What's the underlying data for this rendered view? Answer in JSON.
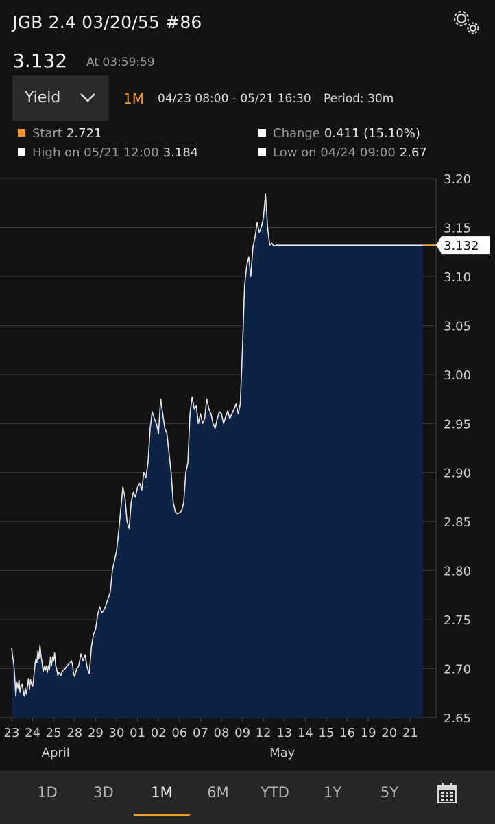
{
  "header": {
    "title": "JGB 2.4 03/20/55 #86",
    "price": "3.132",
    "at_time": "At 03:59:59"
  },
  "controls": {
    "selector_label": "Yield",
    "range": "1M",
    "dates": "04/23 08:00 - 05/21 16:30",
    "period": "Period: 30m"
  },
  "stats": {
    "start_label": "Start",
    "start_value": "2.721",
    "change_label": "Change",
    "change_value": "0.411 (15.10%)",
    "high_label": "High on 05/21 12:00",
    "high_value": "3.184",
    "low_label": "Low on 04/24 09:00",
    "low_value": "2.67"
  },
  "colors": {
    "accent": "#f0962b",
    "line": "#e6e6e6",
    "area": "#0e2244",
    "background": "#121212"
  },
  "chart_data": {
    "type": "area",
    "ylim": [
      2.65,
      3.2
    ],
    "yticks": [
      "3.20",
      "3.15",
      "3.10",
      "3.05",
      "3.00",
      "2.95",
      "2.90",
      "2.85",
      "2.80",
      "2.75",
      "2.70",
      "2.65"
    ],
    "xtick_labels": [
      "23",
      "24",
      "25",
      "28",
      "29",
      "30",
      "01",
      "02",
      "06",
      "07",
      "08",
      "09",
      "12",
      "13",
      "14",
      "15",
      "16",
      "19",
      "20",
      "21"
    ],
    "month_labels": [
      "April",
      "May"
    ],
    "last_value_label": "3.132",
    "grid": true,
    "series": [
      {
        "x": [
          0,
          0.05,
          0.1,
          0.15,
          0.2,
          0.25,
          0.3,
          0.35,
          0.4,
          0.45,
          0.5,
          0.55,
          0.6,
          0.65,
          0.7,
          0.75,
          0.8,
          0.85,
          0.9,
          0.95,
          1,
          1.05,
          1.1,
          1.15,
          1.2,
          1.25,
          1.3,
          1.35,
          1.4,
          1.45,
          1.5,
          1.55,
          1.6,
          1.65,
          1.7,
          1.75,
          1.8,
          1.85,
          1.9,
          1.95,
          2,
          2.05,
          2.1,
          2.15,
          2.2,
          2.25,
          2.3,
          2.35,
          2.4,
          2.45,
          2.5,
          2.55,
          2.6,
          2.65,
          2.7,
          2.75,
          2.8,
          2.85,
          2.9,
          2.95,
          3,
          3.1,
          3.2,
          3.3,
          3.4,
          3.5,
          3.6,
          3.7,
          3.8,
          3.9,
          4,
          4.1,
          4.2,
          4.3,
          4.4,
          4.5,
          4.6,
          4.7,
          4.8,
          4.9,
          5,
          5.1,
          5.2,
          5.3,
          5.4,
          5.5,
          5.6,
          5.7,
          5.8,
          5.9,
          6,
          6.1,
          6.2,
          6.3,
          6.4,
          6.5,
          6.6,
          6.7,
          6.8,
          6.9,
          7,
          7.1,
          7.2,
          7.3,
          7.4,
          7.5,
          7.6,
          7.7,
          7.8,
          7.9,
          8,
          8.1,
          8.2,
          8.3,
          8.4,
          8.5,
          8.6,
          8.7,
          8.8,
          8.9,
          9,
          9.1,
          9.2,
          9.3,
          9.4,
          9.5,
          9.6,
          9.7,
          9.8,
          9.9,
          10,
          10.1,
          10.2,
          10.3,
          10.4,
          10.5,
          10.6,
          10.7,
          10.8,
          10.9,
          11,
          11.1,
          11.2,
          11.3,
          11.4,
          11.5,
          11.6,
          11.7,
          11.8,
          11.9,
          12,
          12.1,
          12.2,
          12.3,
          12.4,
          12.5,
          12.6,
          12.7,
          12.8,
          12.9,
          13,
          13.1,
          13.2,
          13.3,
          13.4,
          13.5,
          13.6,
          13.7,
          13.8,
          13.9,
          14,
          14.1,
          14.2,
          14.3,
          14.4,
          14.5,
          14.6,
          14.7,
          14.8,
          14.9,
          15,
          15.1,
          15.2,
          15.3,
          15.4,
          15.5,
          15.6,
          15.7,
          15.8,
          15.9,
          16,
          16.1,
          16.2,
          16.3,
          16.4,
          16.5,
          16.6,
          16.7,
          16.8,
          16.9,
          17,
          17.1,
          17.2,
          17.3,
          17.4,
          17.5,
          17.6,
          17.7,
          17.8,
          17.9,
          18,
          18.1,
          18.2,
          18.3,
          18.4,
          18.5,
          18.6,
          18.7,
          18.8,
          18.9,
          19,
          19.1,
          19.2,
          19.3,
          19.4,
          19.5,
          19.6,
          19.7,
          19.8,
          19.9,
          20,
          20.1,
          20.2,
          20.3,
          20.4
        ],
        "y": [
          2.721,
          2.712,
          2.705,
          2.69,
          2.672,
          2.686,
          2.68,
          2.688,
          2.676,
          2.682,
          2.684,
          2.678,
          2.672,
          2.68,
          2.674,
          2.682,
          2.69,
          2.679,
          2.689,
          2.684,
          2.682,
          2.69,
          2.702,
          2.71,
          2.706,
          2.718,
          2.71,
          2.724,
          2.713,
          2.706,
          2.697,
          2.702,
          2.698,
          2.703,
          2.696,
          2.703,
          2.699,
          2.712,
          2.703,
          2.712,
          2.708,
          2.716,
          2.703,
          2.699,
          2.693,
          2.696,
          2.695,
          2.693,
          2.697,
          2.698,
          2.699,
          2.7,
          2.702,
          2.703,
          2.704,
          2.706,
          2.706,
          2.708,
          2.704,
          2.695,
          2.692,
          2.7,
          2.703,
          2.715,
          2.708,
          2.714,
          2.701,
          2.695,
          2.722,
          2.735,
          2.74,
          2.755,
          2.763,
          2.757,
          2.76,
          2.765,
          2.772,
          2.778,
          2.8,
          2.81,
          2.82,
          2.84,
          2.862,
          2.885,
          2.875,
          2.85,
          2.843,
          2.87,
          2.88,
          2.875,
          2.885,
          2.889,
          2.882,
          2.9,
          2.895,
          2.91,
          2.945,
          2.962,
          2.955,
          2.95,
          2.94,
          2.975,
          2.96,
          2.945,
          2.94,
          2.92,
          2.9,
          2.87,
          2.86,
          2.858,
          2.859,
          2.861,
          2.869,
          2.9,
          2.91,
          2.96,
          2.977,
          2.965,
          2.968,
          2.95,
          2.96,
          2.95,
          2.955,
          2.975,
          2.965,
          2.96,
          2.95,
          2.945,
          2.955,
          2.962,
          2.96,
          2.95,
          2.957,
          2.963,
          2.955,
          2.96,
          2.965,
          2.97,
          2.96,
          2.97,
          3.025,
          3.09,
          3.11,
          3.12,
          3.1,
          3.13,
          3.14,
          3.155,
          3.145,
          3.15,
          3.16,
          3.184,
          3.15,
          3.132,
          3.134,
          3.131,
          3.132,
          3.132,
          3.132,
          3.132,
          3.132,
          3.132,
          3.132,
          3.132,
          3.132,
          3.132,
          3.132,
          3.132,
          3.132,
          3.132,
          3.132,
          3.132,
          3.132,
          3.132,
          3.132,
          3.132,
          3.132,
          3.132,
          3.132,
          3.132,
          3.132,
          3.132,
          3.132,
          3.132,
          3.132,
          3.132,
          3.132,
          3.132,
          3.132,
          3.132,
          3.132,
          3.132,
          3.132,
          3.132,
          3.132,
          3.132,
          3.132,
          3.132,
          3.132,
          3.132,
          3.132,
          3.132,
          3.132,
          3.132,
          3.132,
          3.132,
          3.132,
          3.132,
          3.132,
          3.132,
          3.132,
          3.132,
          3.132,
          3.132,
          3.132,
          3.132,
          3.132,
          3.132,
          3.132,
          3.132,
          3.132,
          3.132,
          3.132,
          3.132,
          3.132,
          3.132,
          3.132,
          3.132,
          3.132,
          3.132,
          3.132,
          3.132,
          3.132,
          3.132,
          3.132
        ]
      }
    ]
  },
  "tabs": [
    "1D",
    "3D",
    "1M",
    "6M",
    "YTD",
    "1Y",
    "5Y"
  ],
  "active_tab": "1M",
  "icons": {
    "settings": "gears-icon",
    "dropdown": "chevron-down-icon",
    "calendar": "calendar-icon"
  }
}
